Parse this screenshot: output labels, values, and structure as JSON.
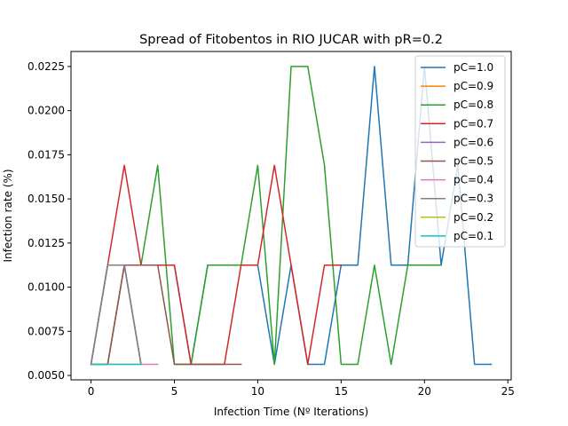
{
  "chart_data": {
    "type": "line",
    "title": "Spread of Fitobentos in RIO JUCAR with pR=0.2",
    "xlabel": "Infection Time (Nº Iterations)",
    "ylabel": "Infection rate (%)",
    "xlim": [
      -1.2,
      25.2
    ],
    "ylim": [
      0.00475,
      0.02335
    ],
    "xticks": [
      0,
      5,
      10,
      15,
      20,
      25
    ],
    "xtick_labels": [
      "0",
      "5",
      "10",
      "15",
      "20",
      "25"
    ],
    "yticks": [
      0.005,
      0.0075,
      0.01,
      0.0125,
      0.015,
      0.0175,
      0.02,
      0.0225
    ],
    "ytick_labels": [
      "0.0050",
      "0.0075",
      "0.0100",
      "0.0125",
      "0.0150",
      "0.0175",
      "0.0200",
      "0.0225"
    ],
    "grid": false,
    "legend_position": "top-right",
    "series": [
      {
        "name": "pC=1.0",
        "color": "#1f77b4",
        "x": [
          0,
          1,
          2,
          3,
          4,
          5,
          6,
          7,
          8,
          9,
          10,
          11,
          12,
          13,
          14,
          15,
          16,
          17,
          18,
          19,
          20,
          21,
          22,
          23,
          24
        ],
        "y": [
          0.00563,
          0.00563,
          0.01125,
          0.01125,
          0.01125,
          0.01125,
          0.00563,
          0.01125,
          0.01125,
          0.01125,
          0.01125,
          0.00563,
          0.01125,
          0.00563,
          0.00563,
          0.01125,
          0.01125,
          0.0225,
          0.01125,
          0.01125,
          0.0225,
          0.01125,
          0.0169,
          0.00563,
          0.00563
        ]
      },
      {
        "name": "pC=0.9",
        "color": "#ff7f0e",
        "x": [
          0,
          1,
          2,
          3
        ],
        "y": [
          0.00563,
          0.00563,
          0.01125,
          0.00563
        ]
      },
      {
        "name": "pC=0.8",
        "color": "#2ca02c",
        "x": [
          0,
          1,
          2,
          3,
          4,
          5,
          6,
          7,
          8,
          9,
          10,
          11,
          12,
          13,
          14,
          15,
          16,
          17,
          18,
          19,
          20,
          21
        ],
        "y": [
          0.00563,
          0.01125,
          0.01125,
          0.01125,
          0.0169,
          0.00563,
          0.00563,
          0.01125,
          0.01125,
          0.01125,
          0.0169,
          0.00563,
          0.0225,
          0.0225,
          0.0169,
          0.00563,
          0.00563,
          0.01125,
          0.00563,
          0.01125,
          0.01125,
          0.01125
        ]
      },
      {
        "name": "pC=0.7",
        "color": "#d62728",
        "x": [
          0,
          1,
          2,
          3,
          4,
          5,
          6,
          7,
          8,
          9,
          10,
          11,
          12,
          13,
          14,
          15
        ],
        "y": [
          0.00563,
          0.01125,
          0.0169,
          0.01125,
          0.01125,
          0.01125,
          0.00563,
          0.00563,
          0.00563,
          0.01125,
          0.01125,
          0.0169,
          0.01125,
          0.00563,
          0.01125,
          0.01125
        ]
      },
      {
        "name": "pC=0.6",
        "color": "#9467bd",
        "x": [
          0,
          1,
          2,
          3
        ],
        "y": [
          0.00563,
          0.01125,
          0.01125,
          0.00563
        ]
      },
      {
        "name": "pC=0.5",
        "color": "#8c564b",
        "x": [
          0,
          1,
          2,
          3,
          4,
          5,
          6,
          7,
          8,
          9
        ],
        "y": [
          0.00563,
          0.00563,
          0.01125,
          0.01125,
          0.01125,
          0.00563,
          0.00563,
          0.00563,
          0.00563,
          0.00563
        ]
      },
      {
        "name": "pC=0.4",
        "color": "#e377c2",
        "x": [
          0,
          1,
          2,
          3,
          4
        ],
        "y": [
          0.00563,
          0.01125,
          0.01125,
          0.00563,
          0.00563
        ]
      },
      {
        "name": "pC=0.3",
        "color": "#7f7f7f",
        "x": [
          0,
          1,
          2,
          3
        ],
        "y": [
          0.00563,
          0.01125,
          0.01125,
          0.00563
        ]
      },
      {
        "name": "pC=0.2",
        "color": "#bcbd22",
        "x": [
          0,
          1,
          2,
          3
        ],
        "y": [
          0.00563,
          0.00563,
          0.00563,
          0.00563
        ]
      },
      {
        "name": "pC=0.1",
        "color": "#17becf",
        "x": [
          0,
          1,
          2,
          3
        ],
        "y": [
          0.00563,
          0.00563,
          0.00563,
          0.00563
        ]
      }
    ]
  }
}
